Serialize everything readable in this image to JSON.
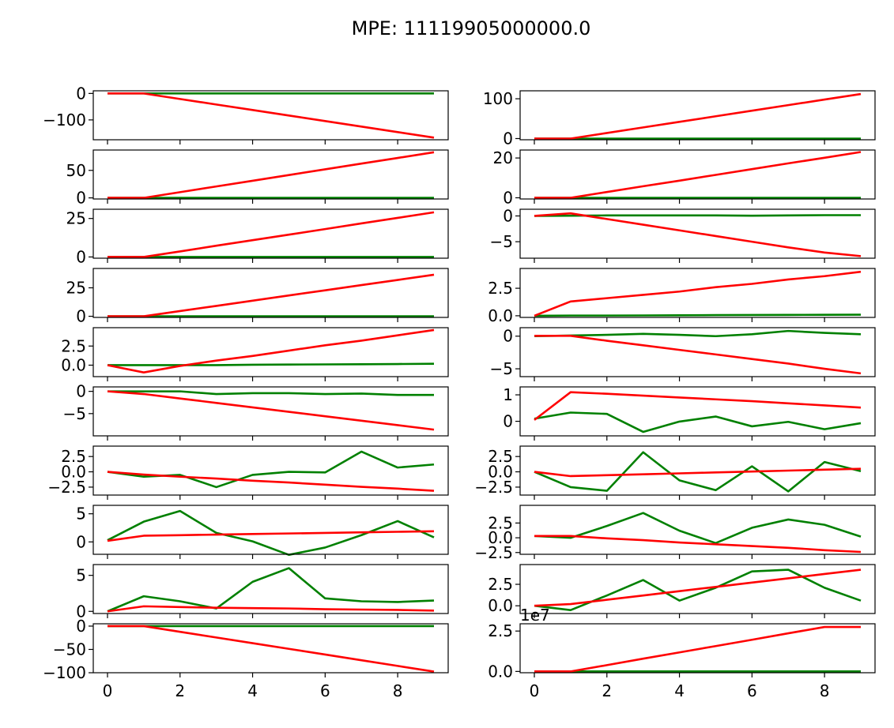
{
  "title": "MPE: 11119905000000.0",
  "chart_data": {
    "type": "line",
    "layout": "10 rows x 2 columns of subplots sharing x",
    "series_colors": {
      "green": "#008000",
      "red": "#ff0000"
    },
    "x": [
      0,
      1,
      2,
      3,
      4,
      5,
      6,
      7,
      8,
      9
    ],
    "x_ticks": [
      "0",
      "2",
      "4",
      "6",
      "8"
    ],
    "subplots": [
      {
        "ylim": [
          -175,
          10
        ],
        "yticks": [
          {
            "v": 0,
            "label": "0"
          },
          {
            "v": -100,
            "label": "−100"
          }
        ],
        "green": [
          0,
          0,
          0,
          0,
          0,
          0,
          0,
          0,
          0,
          0
        ],
        "red": [
          0,
          0,
          -20.9,
          -41.8,
          -62.6,
          -83.5,
          -104.4,
          -125.3,
          -146.1,
          -167
        ]
      },
      {
        "ylim": [
          -3,
          120
        ],
        "yticks": [
          {
            "v": 0,
            "label": "0"
          },
          {
            "v": 100,
            "label": "100"
          }
        ],
        "green": [
          0,
          0,
          0,
          0,
          0,
          0,
          0,
          0,
          0,
          0
        ],
        "red": [
          0,
          0,
          14,
          28,
          42,
          56,
          70,
          84,
          98,
          112
        ]
      },
      {
        "ylim": [
          -2,
          87
        ],
        "yticks": [
          {
            "v": 0,
            "label": "0"
          },
          {
            "v": 50,
            "label": "50"
          }
        ],
        "green": [
          0,
          0,
          0,
          0,
          0,
          0,
          0,
          0,
          0,
          0
        ],
        "red": [
          0,
          0,
          10.4,
          20.8,
          31.1,
          41.5,
          51.9,
          62.3,
          72.6,
          83
        ]
      },
      {
        "ylim": [
          -0.6,
          24
        ],
        "yticks": [
          {
            "v": 0,
            "label": "0"
          },
          {
            "v": 20,
            "label": "20"
          }
        ],
        "green": [
          0,
          0,
          0,
          0,
          0,
          0,
          0,
          0,
          0,
          0
        ],
        "red": [
          0,
          0,
          2.9,
          5.8,
          8.6,
          11.5,
          14.4,
          17.3,
          20.1,
          23
        ]
      },
      {
        "ylim": [
          -0.8,
          31
        ],
        "yticks": [
          {
            "v": 0,
            "label": "0"
          },
          {
            "v": 25,
            "label": "25"
          }
        ],
        "green": [
          0,
          0,
          0,
          0,
          0,
          0,
          0,
          0,
          0,
          0
        ],
        "red": [
          0,
          0,
          3.6,
          7.3,
          10.9,
          14.5,
          18.1,
          21.8,
          25.4,
          29
        ]
      },
      {
        "ylim": [
          -8.2,
          1.3
        ],
        "yticks": [
          {
            "v": 0,
            "label": "0"
          },
          {
            "v": -5,
            "label": "−5"
          }
        ],
        "green": [
          0,
          0.05,
          0.1,
          0.1,
          0.1,
          0.1,
          0.05,
          0.1,
          0.15,
          0.15
        ],
        "red": [
          0,
          0.5,
          -0.6,
          -1.7,
          -2.8,
          -3.9,
          -5,
          -6.1,
          -7.1,
          -7.8
        ]
      },
      {
        "ylim": [
          -1,
          42
        ],
        "yticks": [
          {
            "v": 0,
            "label": "0"
          },
          {
            "v": 25,
            "label": "25"
          }
        ],
        "green": [
          0,
          0,
          0,
          0,
          0,
          0,
          0,
          0,
          0,
          0
        ],
        "red": [
          0,
          0,
          4.6,
          9.1,
          13.7,
          18.3,
          22.8,
          27.4,
          31.9,
          36.5
        ]
      },
      {
        "ylim": [
          -0.15,
          4.3
        ],
        "yticks": [
          {
            "v": 0,
            "label": "0.0"
          },
          {
            "v": 2.5,
            "label": "2.5"
          }
        ],
        "green": [
          0,
          0.02,
          0.02,
          0.03,
          0.04,
          0.06,
          0.07,
          0.08,
          0.09,
          0.1
        ],
        "red": [
          0,
          1.3,
          1.6,
          1.9,
          2.2,
          2.6,
          2.9,
          3.3,
          3.6,
          4
        ]
      },
      {
        "ylim": [
          -1.5,
          4.9
        ],
        "yticks": [
          {
            "v": 0,
            "label": "0.0"
          },
          {
            "v": 2.5,
            "label": "2.5"
          }
        ],
        "green": [
          0,
          0,
          0,
          0,
          0.05,
          0.08,
          0.1,
          0.12,
          0.15,
          0.18
        ],
        "red": [
          0,
          -0.95,
          -0.1,
          0.6,
          1.2,
          1.9,
          2.6,
          3.2,
          3.9,
          4.6
        ]
      },
      {
        "ylim": [
          -6.2,
          1.3
        ],
        "yticks": [
          {
            "v": 0,
            "label": "0"
          },
          {
            "v": -5,
            "label": "−5"
          }
        ],
        "green": [
          0,
          0.1,
          0.2,
          0.35,
          0.2,
          0,
          0.3,
          0.8,
          0.5,
          0.3
        ],
        "red": [
          0.05,
          0.05,
          -0.7,
          -1.4,
          -2.1,
          -2.8,
          -3.5,
          -4.2,
          -5,
          -5.7
        ]
      },
      {
        "ylim": [
          -10,
          1
        ],
        "yticks": [
          {
            "v": 0,
            "label": "0"
          },
          {
            "v": -5,
            "label": "−5"
          }
        ],
        "green": [
          0,
          0,
          0,
          -0.6,
          -0.4,
          -0.4,
          -0.6,
          -0.5,
          -0.8,
          -0.8
        ],
        "red": [
          0,
          -0.6,
          -1.6,
          -2.6,
          -3.6,
          -4.6,
          -5.6,
          -6.6,
          -7.6,
          -8.6
        ]
      },
      {
        "ylim": [
          -0.55,
          1.3
        ],
        "yticks": [
          {
            "v": 1,
            "label": "1"
          },
          {
            "v": 0,
            "label": "0"
          }
        ],
        "green": [
          0.1,
          0.33,
          0.28,
          -0.4,
          -0.01,
          0.18,
          -0.19,
          -0.02,
          -0.3,
          -0.07
        ],
        "red": [
          0.05,
          1.1,
          1.04,
          0.97,
          0.9,
          0.83,
          0.76,
          0.68,
          0.6,
          0.52
        ]
      },
      {
        "ylim": [
          -3.8,
          4.2
        ],
        "yticks": [
          {
            "v": 2.5,
            "label": "2.5"
          },
          {
            "v": 0,
            "label": "0.0"
          },
          {
            "v": -2.5,
            "label": "−2.5"
          }
        ],
        "green": [
          0,
          -0.8,
          -0.5,
          -2.5,
          -0.5,
          0,
          -0.1,
          3.3,
          0.7,
          1.2
        ],
        "red": [
          0,
          -0.45,
          -0.8,
          -1.1,
          -1.45,
          -1.75,
          -2.1,
          -2.45,
          -2.75,
          -3.1
        ]
      },
      {
        "ylim": [
          -3.8,
          4.2
        ],
        "yticks": [
          {
            "v": 2.5,
            "label": "2.5"
          },
          {
            "v": 0,
            "label": "0.0"
          },
          {
            "v": -2.5,
            "label": "−2.5"
          }
        ],
        "green": [
          0,
          -2.5,
          -3.1,
          3.2,
          -1.4,
          -3,
          0.9,
          -3.2,
          1.6,
          0.1
        ],
        "red": [
          0,
          -0.7,
          -0.55,
          -0.4,
          -0.25,
          -0.1,
          0.05,
          0.2,
          0.35,
          0.5
        ]
      },
      {
        "ylim": [
          -2.2,
          6.5
        ],
        "yticks": [
          {
            "v": 5,
            "label": "5"
          },
          {
            "v": 0,
            "label": "0"
          }
        ],
        "green": [
          0.3,
          3.6,
          5.5,
          1.6,
          0.1,
          -2.3,
          -1,
          1.2,
          3.7,
          0.8
        ],
        "red": [
          0.2,
          1.1,
          1.2,
          1.3,
          1.4,
          1.5,
          1.6,
          1.7,
          1.8,
          1.9
        ]
      },
      {
        "ylim": [
          -2.8,
          5.5
        ],
        "yticks": [
          {
            "v": 2.5,
            "label": "2.5"
          },
          {
            "v": 0,
            "label": "0.0"
          },
          {
            "v": -2.5,
            "label": "−2.5"
          }
        ],
        "green": [
          0.3,
          0,
          2,
          4.2,
          1.2,
          -0.9,
          1.7,
          3.1,
          2.2,
          0.2
        ],
        "red": [
          0.3,
          0.3,
          -0.1,
          -0.4,
          -0.8,
          -1.1,
          -1.4,
          -1.7,
          -2.1,
          -2.4
        ]
      },
      {
        "ylim": [
          -0.3,
          6.5
        ],
        "yticks": [
          {
            "v": 5,
            "label": "5"
          },
          {
            "v": 0,
            "label": "0"
          }
        ],
        "green": [
          0,
          2.1,
          1.4,
          0.4,
          4.1,
          6,
          1.8,
          1.4,
          1.3,
          1.5
        ],
        "red": [
          0,
          0.7,
          0.6,
          0.5,
          0.45,
          0.4,
          0.3,
          0.25,
          0.2,
          0.1
        ]
      },
      {
        "ylim": [
          -0.9,
          4.8
        ],
        "yticks": [
          {
            "v": 2.5,
            "label": "2.5"
          },
          {
            "v": 0,
            "label": "0.0"
          }
        ],
        "green": [
          0,
          -0.5,
          1.2,
          3,
          0.6,
          2.1,
          4,
          4.2,
          2.1,
          0.6
        ],
        "red": [
          0,
          0.2,
          0.7,
          1.2,
          1.7,
          2.2,
          2.7,
          3.2,
          3.7,
          4.2
        ]
      },
      {
        "ylim": [
          -100,
          5
        ],
        "yticks": [
          {
            "v": 0,
            "label": "0"
          },
          {
            "v": -50,
            "label": "−50"
          },
          {
            "v": -100,
            "label": "−100"
          }
        ],
        "green": [
          0,
          0,
          0,
          0,
          0,
          0,
          0,
          0,
          0,
          0
        ],
        "red": [
          0,
          0,
          -12.2,
          -24.4,
          -36.6,
          -48.8,
          -61,
          -73.2,
          -85.4,
          -97.6
        ]
      },
      {
        "ylim": [
          -0.08,
          2.95
        ],
        "yticks": [
          {
            "v": 0,
            "label": "0.0"
          },
          {
            "v": 2.5,
            "label": "2.5"
          }
        ],
        "offset_label": "1e7",
        "green": [
          0,
          0,
          0,
          0,
          0,
          0,
          0,
          0,
          0,
          0
        ],
        "red": [
          0,
          0,
          0.39,
          0.79,
          1.18,
          1.57,
          1.96,
          2.36,
          2.75,
          2.75
        ]
      }
    ]
  }
}
